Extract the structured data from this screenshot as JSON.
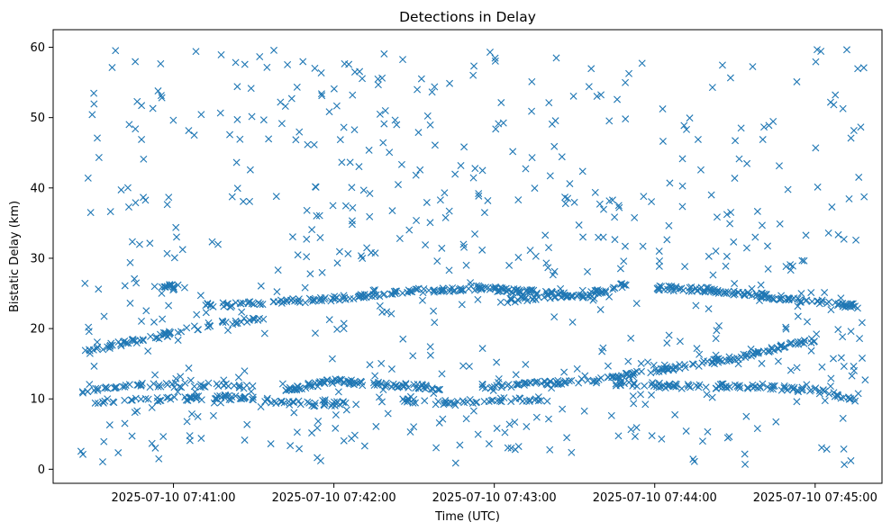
{
  "chart_data": {
    "type": "scatter",
    "title": "Detections in Delay",
    "xlabel": "Time (UTC)",
    "ylabel": "Bistatic Delay (km)",
    "marker": "x",
    "grid": false,
    "x_type": "datetime",
    "xlim": [
      "2025-07-10 07:40:15",
      "2025-07-10 07:45:25"
    ],
    "ylim": [
      -2,
      62.5
    ],
    "x_ticks": [
      "2025-07-10 07:41:00",
      "2025-07-10 07:42:00",
      "2025-07-10 07:43:00",
      "2025-07-10 07:44:00",
      "2025-07-10 07:45:00"
    ],
    "y_ticks": [
      0,
      10,
      20,
      30,
      40,
      50,
      60
    ],
    "color": "#1f77b4",
    "tracks": [
      {
        "points": [
          [
            "2025-07-10 07:40:25",
            16.8
          ],
          [
            "2025-07-10 07:40:40",
            17.8
          ],
          [
            "2025-07-10 07:40:55",
            19.0
          ],
          [
            "2025-07-10 07:41:15",
            20.6
          ],
          [
            "2025-07-10 07:41:35",
            21.6
          ]
        ],
        "count": 70
      },
      {
        "points": [
          [
            "2025-07-10 07:40:55",
            26.2
          ],
          [
            "2025-07-10 07:41:05",
            26.0
          ]
        ],
        "count": 14
      },
      {
        "points": [
          [
            "2025-07-10 07:41:10",
            23.2
          ],
          [
            "2025-07-10 07:41:35",
            23.6
          ],
          [
            "2025-07-10 07:42:00",
            24.3
          ],
          [
            "2025-07-10 07:42:30",
            25.4
          ],
          [
            "2025-07-10 07:42:55",
            25.8
          ],
          [
            "2025-07-10 07:43:20",
            25.0
          ],
          [
            "2025-07-10 07:43:40",
            24.2
          ]
        ],
        "count": 190
      },
      {
        "points": [
          [
            "2025-07-10 07:43:00",
            23.8
          ],
          [
            "2025-07-10 07:43:20",
            24.6
          ],
          [
            "2025-07-10 07:43:40",
            25.2
          ],
          [
            "2025-07-10 07:43:50",
            26.4
          ]
        ],
        "count": 60
      },
      {
        "points": [
          [
            "2025-07-10 07:44:00",
            25.8
          ],
          [
            "2025-07-10 07:44:20",
            25.5
          ],
          [
            "2025-07-10 07:44:40",
            24.7
          ],
          [
            "2025-07-10 07:45:00",
            23.8
          ],
          [
            "2025-07-10 07:45:15",
            23.2
          ]
        ],
        "count": 130
      },
      {
        "points": [
          [
            "2025-07-10 07:40:25",
            11.0
          ],
          [
            "2025-07-10 07:40:50",
            12.0
          ],
          [
            "2025-07-10 07:41:15",
            12.0
          ],
          [
            "2025-07-10 07:41:30",
            11.6
          ]
        ],
        "count": 55
      },
      {
        "points": [
          [
            "2025-07-10 07:40:30",
            9.6
          ],
          [
            "2025-07-10 07:40:55",
            10.0
          ],
          [
            "2025-07-10 07:41:20",
            10.2
          ],
          [
            "2025-07-10 07:41:50",
            9.3
          ],
          [
            "2025-07-10 07:42:05",
            9.3
          ]
        ],
        "count": 95
      },
      {
        "points": [
          [
            "2025-07-10 07:41:40",
            11.2
          ],
          [
            "2025-07-10 07:42:00",
            12.5
          ],
          [
            "2025-07-10 07:42:20",
            12.0
          ],
          [
            "2025-07-10 07:42:40",
            11.6
          ]
        ],
        "count": 100
      },
      {
        "points": [
          [
            "2025-07-10 07:42:25",
            9.8
          ],
          [
            "2025-07-10 07:42:40",
            9.4
          ],
          [
            "2025-07-10 07:43:00",
            9.8
          ],
          [
            "2025-07-10 07:43:20",
            10.0
          ]
        ],
        "count": 50
      },
      {
        "points": [
          [
            "2025-07-10 07:42:55",
            11.8
          ],
          [
            "2025-07-10 07:43:20",
            12.3
          ],
          [
            "2025-07-10 07:43:40",
            12.8
          ],
          [
            "2025-07-10 07:44:00",
            14.0
          ],
          [
            "2025-07-10 07:44:30",
            15.8
          ],
          [
            "2025-07-10 07:45:00",
            18.5
          ]
        ],
        "count": 170
      },
      {
        "points": [
          [
            "2025-07-10 07:43:45",
            12.2
          ],
          [
            "2025-07-10 07:44:10",
            11.8
          ],
          [
            "2025-07-10 07:44:40",
            11.8
          ],
          [
            "2025-07-10 07:45:00",
            11.2
          ],
          [
            "2025-07-10 07:45:15",
            10.0
          ]
        ],
        "count": 110
      }
    ],
    "clutter": {
      "x_range": [
        "2025-07-10 07:40:25",
        "2025-07-10 07:45:20"
      ],
      "y_range": [
        0.5,
        59.8
      ],
      "count": 640
    }
  }
}
